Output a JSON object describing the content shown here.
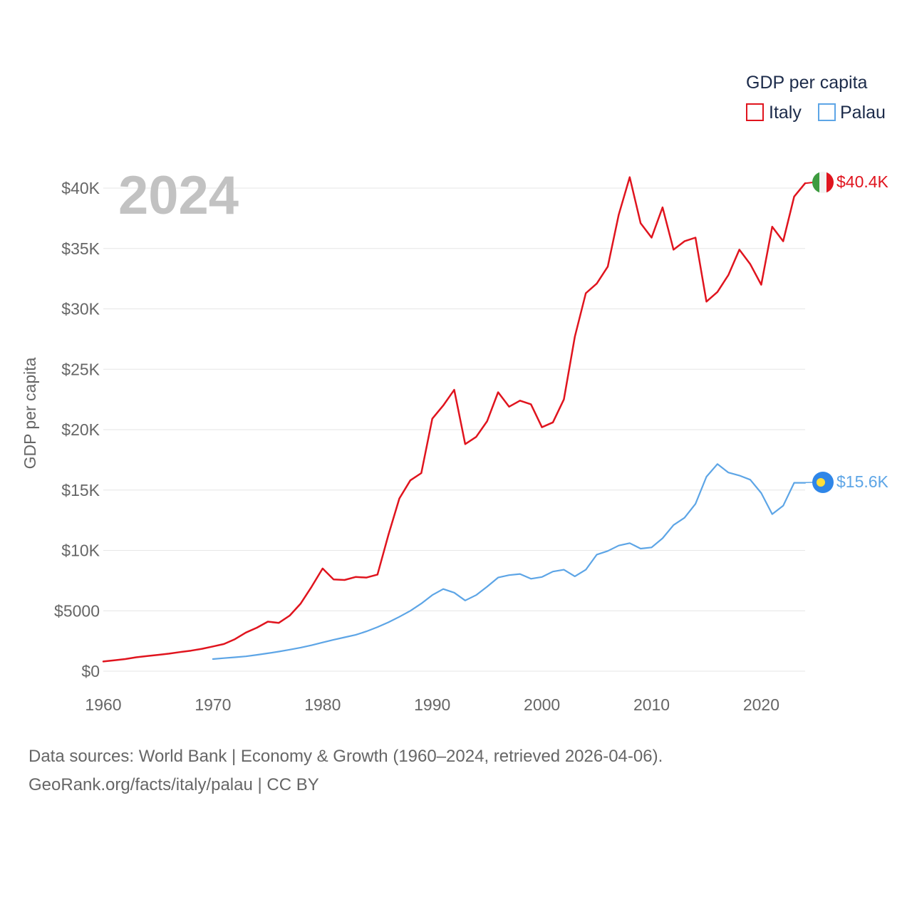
{
  "chart_data": {
    "type": "line",
    "title": "",
    "year_label": "2024",
    "ylabel": "GDP per capita",
    "xlabel": "",
    "xlim": [
      1960,
      2024
    ],
    "ylim": [
      0,
      40000
    ],
    "y_ticks": [
      {
        "value": 0,
        "label": "$0"
      },
      {
        "value": 5000,
        "label": "$5000"
      },
      {
        "value": 10000,
        "label": "$10K"
      },
      {
        "value": 15000,
        "label": "$15K"
      },
      {
        "value": 20000,
        "label": "$20K"
      },
      {
        "value": 25000,
        "label": "$25K"
      },
      {
        "value": 30000,
        "label": "$30K"
      },
      {
        "value": 35000,
        "label": "$35K"
      },
      {
        "value": 40000,
        "label": "$40K"
      }
    ],
    "x_ticks": [
      {
        "value": 1960,
        "label": "1960"
      },
      {
        "value": 1970,
        "label": "1970"
      },
      {
        "value": 1980,
        "label": "1980"
      },
      {
        "value": 1990,
        "label": "1990"
      },
      {
        "value": 2000,
        "label": "2000"
      },
      {
        "value": 2010,
        "label": "2010"
      },
      {
        "value": 2020,
        "label": "2020"
      }
    ],
    "grid": true,
    "legend": {
      "title": "GDP per capita",
      "position": "top-right",
      "entries": [
        "Italy",
        "Palau"
      ]
    },
    "series": [
      {
        "name": "Italy",
        "color": "#e0141e",
        "end_label": "$40.4K",
        "flag": "italy-flag",
        "x": [
          1960,
          1961,
          1962,
          1963,
          1964,
          1965,
          1966,
          1967,
          1968,
          1969,
          1970,
          1971,
          1972,
          1973,
          1974,
          1975,
          1976,
          1977,
          1978,
          1979,
          1980,
          1981,
          1982,
          1983,
          1984,
          1985,
          1986,
          1987,
          1988,
          1989,
          1990,
          1991,
          1992,
          1993,
          1994,
          1995,
          1996,
          1997,
          1998,
          1999,
          2000,
          2001,
          2002,
          2003,
          2004,
          2005,
          2006,
          2007,
          2008,
          2009,
          2010,
          2011,
          2012,
          2013,
          2014,
          2015,
          2016,
          2017,
          2018,
          2019,
          2020,
          2021,
          2022,
          2023,
          2024
        ],
        "values": [
          800,
          900,
          1000,
          1150,
          1250,
          1350,
          1450,
          1580,
          1700,
          1850,
          2050,
          2250,
          2650,
          3200,
          3600,
          4100,
          4000,
          4600,
          5600,
          7000,
          8500,
          7600,
          7550,
          7800,
          7750,
          8000,
          11300,
          14300,
          15800,
          16400,
          20900,
          22000,
          23300,
          18800,
          19400,
          20700,
          23100,
          21900,
          22400,
          22100,
          20200,
          20600,
          22500,
          27700,
          31300,
          32100,
          33500,
          37800,
          40900,
          37100,
          35900,
          38400,
          34900,
          35600,
          35900,
          30600,
          31400,
          32800,
          34900,
          33700,
          32000,
          36800,
          35600,
          39300,
          40400
        ]
      },
      {
        "name": "Palau",
        "color": "#5da5e6",
        "end_label": "$15.6K",
        "flag": "palau-flag",
        "x": [
          1970,
          1971,
          1972,
          1973,
          1974,
          1975,
          1976,
          1977,
          1978,
          1979,
          1980,
          1981,
          1982,
          1983,
          1984,
          1985,
          1986,
          1987,
          1988,
          1989,
          1990,
          1991,
          1992,
          1993,
          1994,
          1995,
          1996,
          1997,
          1998,
          1999,
          2000,
          2001,
          2002,
          2003,
          2004,
          2005,
          2006,
          2007,
          2008,
          2009,
          2010,
          2011,
          2012,
          2013,
          2014,
          2015,
          2016,
          2017,
          2018,
          2019,
          2020,
          2021,
          2022,
          2023,
          2024
        ],
        "values": [
          1000,
          1080,
          1150,
          1230,
          1350,
          1480,
          1620,
          1780,
          1950,
          2150,
          2380,
          2600,
          2800,
          3000,
          3300,
          3650,
          4050,
          4500,
          5000,
          5600,
          6300,
          6800,
          6500,
          5850,
          6300,
          7000,
          7750,
          7950,
          8050,
          7650,
          7800,
          8250,
          8400,
          7850,
          8400,
          9650,
          9950,
          10400,
          10600,
          10150,
          10250,
          11000,
          12100,
          12700,
          13850,
          16100,
          17150,
          16450,
          16200,
          15850,
          14750,
          13000,
          13700,
          15600,
          15600
        ]
      }
    ]
  },
  "footer": {
    "line1": "Data sources: World Bank | Economy & Growth (1960–2024, retrieved 2026-04-06).",
    "line2": "GeoRank.org/facts/italy/palau | CC BY"
  },
  "colors": {
    "italy": "#e0141e",
    "palau": "#5da5e6",
    "grid": "#e6e6e6",
    "text": "#666666",
    "year": "#c2c2c2",
    "legend_text": "#1c2b4a",
    "italy_flag_green": "#3d9b3f",
    "italy_flag_white": "#f2f2f2",
    "palau_flag_blue": "#2f86e8",
    "palau_flag_yellow": "#ffde3a"
  }
}
